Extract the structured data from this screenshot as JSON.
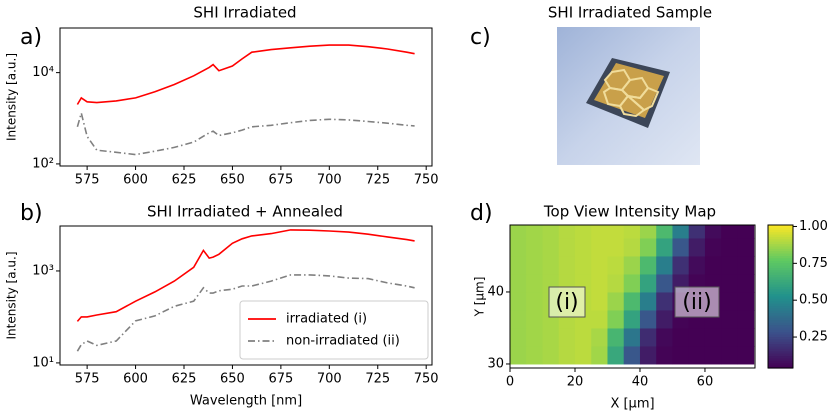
{
  "chart_data": [
    {
      "type": "line",
      "panel_label": "a)",
      "title": "SHI Irradiated",
      "ylabel": "Intensity [a.u.]",
      "ylog": true,
      "xlim": [
        561,
        753
      ],
      "ylim": [
        90,
        95000
      ],
      "xticks": [
        575,
        600,
        625,
        650,
        675,
        700,
        725,
        750
      ],
      "yticks": [
        {
          "value": 100,
          "label": "10²"
        },
        {
          "value": 10000,
          "label": "10⁴"
        }
      ],
      "x": [
        570,
        572,
        575,
        580,
        590,
        600,
        610,
        620,
        630,
        638,
        640,
        643,
        650,
        655,
        660,
        670,
        680,
        690,
        700,
        710,
        720,
        730,
        740,
        744
      ],
      "series": [
        {
          "color": "#ff0000",
          "linestyle": "solid",
          "values": [
            2000,
            2800,
            2300,
            2200,
            2400,
            2800,
            3800,
            5500,
            8500,
            13000,
            15000,
            11000,
            14000,
            20000,
            28000,
            32000,
            35000,
            38000,
            40000,
            40000,
            37000,
            33000,
            28000,
            26000
          ]
        },
        {
          "color": "#808080",
          "linestyle": "dashdot",
          "values": [
            650,
            1300,
            400,
            200,
            180,
            160,
            190,
            230,
            300,
            480,
            520,
            420,
            480,
            550,
            650,
            700,
            800,
            900,
            950,
            920,
            850,
            780,
            700,
            680
          ]
        }
      ]
    },
    {
      "type": "line",
      "panel_label": "b)",
      "title": "SHI Irradiated + Annealed",
      "xlabel": "Wavelength [nm]",
      "ylabel": "Intensity [a.u.]",
      "ylog": true,
      "xlim": [
        561,
        753
      ],
      "ylim": [
        9,
        9500
      ],
      "xticks": [
        575,
        600,
        625,
        650,
        675,
        700,
        725,
        750
      ],
      "yticks": [
        {
          "value": 10,
          "label": "10¹"
        },
        {
          "value": 1000,
          "label": "10³"
        }
      ],
      "legend": "lower right",
      "x": [
        570,
        572,
        575,
        580,
        590,
        600,
        610,
        620,
        630,
        635,
        638,
        640,
        643,
        650,
        655,
        660,
        670,
        680,
        690,
        700,
        710,
        720,
        730,
        740,
        744
      ],
      "series": [
        {
          "name": "irradiated (i)",
          "color": "#ff0000",
          "linestyle": "solid",
          "values": [
            80,
            100,
            100,
            110,
            130,
            220,
            350,
            600,
            1200,
            2800,
            1900,
            2000,
            2300,
            4000,
            5000,
            5800,
            6500,
            7800,
            7700,
            7400,
            7000,
            6300,
            5500,
            4800,
            4500
          ]
        },
        {
          "name": "non-irradiated (ii)",
          "color": "#808080",
          "linestyle": "dashdot",
          "values": [
            18,
            25,
            30,
            24,
            30,
            82,
            105,
            170,
            220,
            430,
            330,
            330,
            370,
            400,
            470,
            470,
            600,
            820,
            820,
            780,
            700,
            680,
            550,
            470,
            430
          ]
        }
      ]
    },
    {
      "type": "image",
      "panel_label": "c)",
      "title": "SHI Irradiated Sample"
    },
    {
      "type": "heatmap",
      "panel_label": "d)",
      "title": "Top View Intensity Map",
      "xlabel": "X [μm]",
      "ylabel": "Y [μm]",
      "xlim": [
        0,
        75.4
      ],
      "ylim": [
        29.44,
        49.3
      ],
      "xticks": [
        0,
        20,
        40,
        60
      ],
      "yticks": [
        30,
        40
      ],
      "colormap": "viridis",
      "clim": [
        0.04,
        1.01
      ],
      "cticks": [
        {
          "value": 0.25,
          "label": "0.25"
        },
        {
          "value": 0.5,
          "label": "0.50"
        },
        {
          "value": 0.75,
          "label": "0.75"
        },
        {
          "value": 1.0,
          "label": "1.00"
        }
      ],
      "annotations": [
        "(i)",
        "(ii)"
      ],
      "x": [
        2.5,
        7.5,
        12.5,
        17.5,
        22.5,
        27.5,
        32.5,
        37.5,
        42.5,
        47.5,
        52.5,
        57.5,
        62.5,
        67.5,
        72.5
      ],
      "y": [
        31.25,
        33.75,
        36.25,
        38.75,
        41.25,
        43.75,
        46.25,
        48.75
      ],
      "z": [
        [
          0.86,
          0.87,
          0.88,
          0.9,
          0.91,
          0.87,
          0.62,
          0.3,
          0.12,
          0.05,
          0.04,
          0.04,
          0.04,
          0.04,
          0.04
        ],
        [
          0.86,
          0.87,
          0.88,
          0.9,
          0.91,
          0.88,
          0.68,
          0.42,
          0.17,
          0.06,
          0.04,
          0.04,
          0.04,
          0.04,
          0.04
        ],
        [
          0.86,
          0.87,
          0.88,
          0.9,
          0.91,
          0.91,
          0.82,
          0.6,
          0.3,
          0.12,
          0.05,
          0.04,
          0.04,
          0.04,
          0.04
        ],
        [
          0.86,
          0.87,
          0.88,
          0.9,
          0.91,
          0.92,
          0.86,
          0.7,
          0.45,
          0.18,
          0.07,
          0.04,
          0.04,
          0.04,
          0.04
        ],
        [
          0.86,
          0.87,
          0.88,
          0.9,
          0.91,
          0.92,
          0.9,
          0.82,
          0.6,
          0.3,
          0.12,
          0.05,
          0.04,
          0.04,
          0.04
        ],
        [
          0.86,
          0.87,
          0.88,
          0.9,
          0.91,
          0.92,
          0.91,
          0.86,
          0.7,
          0.45,
          0.18,
          0.07,
          0.04,
          0.04,
          0.04
        ],
        [
          0.86,
          0.87,
          0.88,
          0.9,
          0.91,
          0.92,
          0.92,
          0.9,
          0.82,
          0.6,
          0.3,
          0.12,
          0.05,
          0.04,
          0.04
        ],
        [
          0.86,
          0.87,
          0.88,
          0.9,
          0.91,
          0.92,
          0.92,
          0.91,
          0.86,
          0.7,
          0.45,
          0.18,
          0.07,
          0.04,
          0.04
        ]
      ]
    }
  ]
}
